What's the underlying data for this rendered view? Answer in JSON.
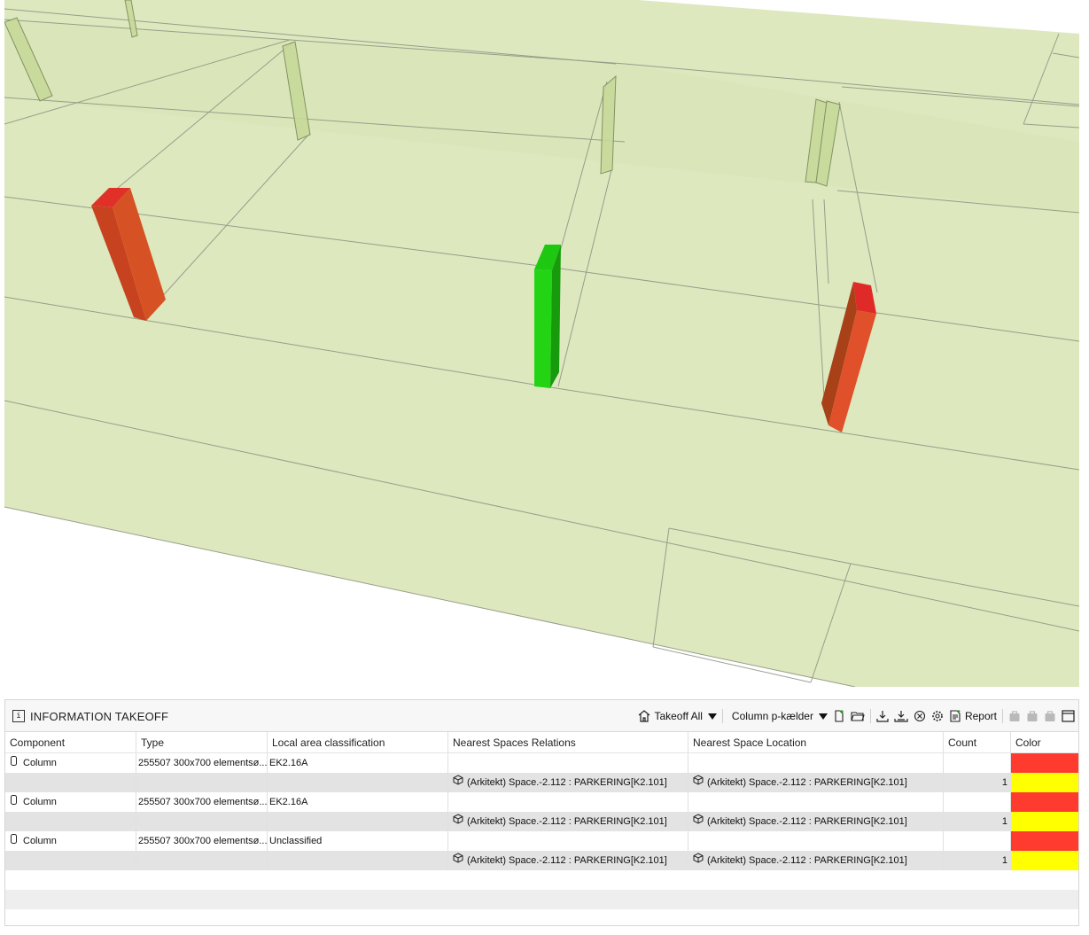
{
  "panel": {
    "title": "INFORMATION TAKEOFF",
    "toolbar": {
      "takeoff_all_label": "Takeoff All",
      "column_set_label": "Column p-kælder",
      "report_label": "Report"
    }
  },
  "table": {
    "headers": [
      "Component",
      "Type",
      "Local area classification",
      "Nearest Spaces Relations",
      "Nearest Space Location",
      "Count",
      "Color"
    ],
    "rows": [
      {
        "component": "Column",
        "type": "255507 300x700 elementsø...",
        "classification": "EK2.16A",
        "color": "#ff3b30"
      },
      {
        "relation": "(Arkitekt) Space.-2.112 : PARKERING[K2.101]",
        "location": "(Arkitekt) Space.-2.112 : PARKERING[K2.101]",
        "count": "1",
        "color": "#ffff00"
      },
      {
        "component": "Column",
        "type": "255507 300x700 elementsø...",
        "classification": "EK2.16A",
        "color": "#ff3b30"
      },
      {
        "relation": "(Arkitekt) Space.-2.112 : PARKERING[K2.101]",
        "location": "(Arkitekt) Space.-2.112 : PARKERING[K2.101]",
        "count": "1",
        "color": "#ffff00"
      },
      {
        "component": "Column",
        "type": "255507 300x700 elementsø...",
        "classification": "Unclassified",
        "color": "#ff3b30"
      },
      {
        "relation": "(Arkitekt) Space.-2.112 : PARKERING[K2.101]",
        "location": "(Arkitekt) Space.-2.112 : PARKERING[K2.101]",
        "count": "1",
        "color": "#ffff00"
      }
    ]
  },
  "scene": {
    "floor_color": "#dde8bf",
    "ghost_column_color": "#c8d99a",
    "highlight_red": "#d9482a",
    "highlight_green": "#22cc11"
  }
}
